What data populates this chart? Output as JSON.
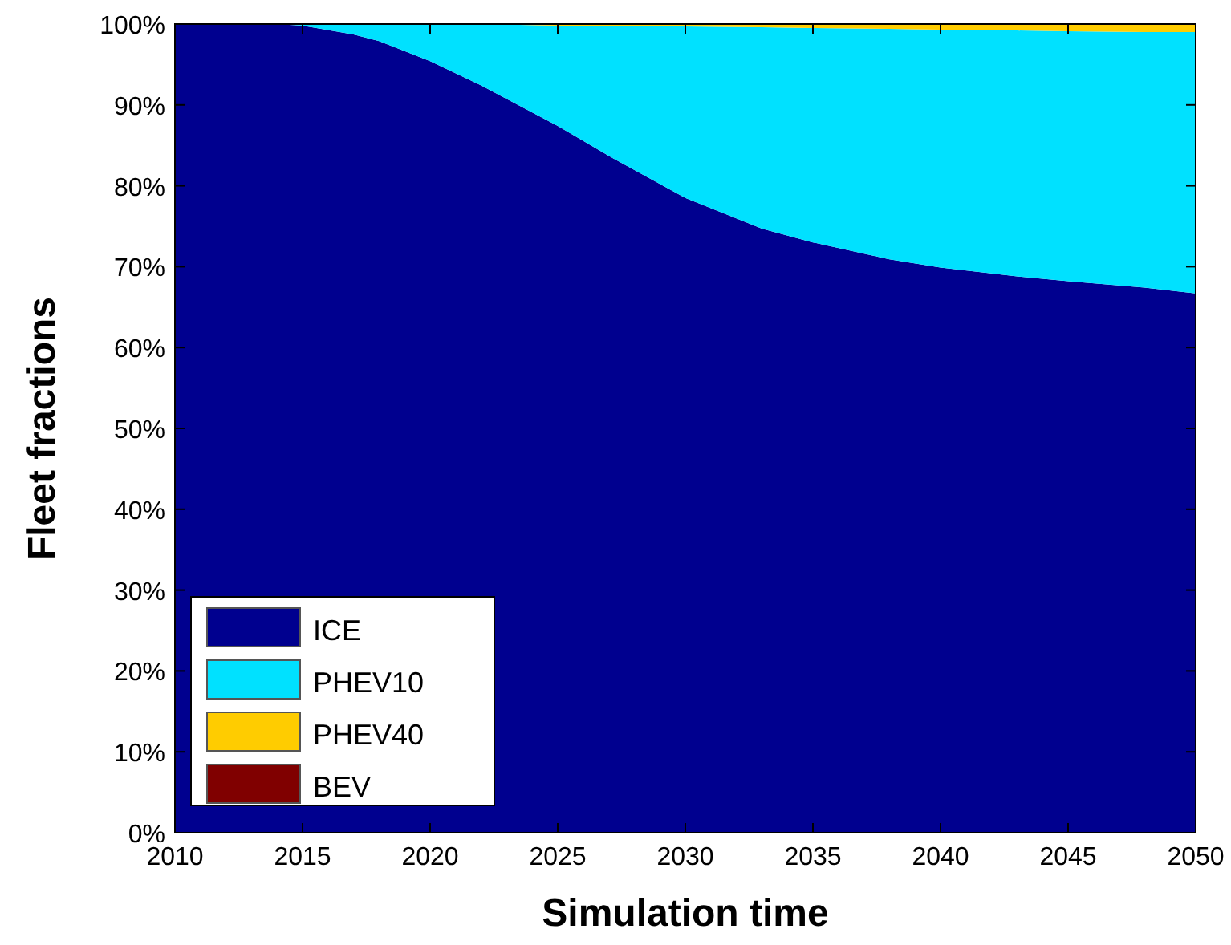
{
  "chart_data": {
    "type": "area",
    "stacked": true,
    "xlabel": "Simulation time",
    "ylabel": "Fleet fractions",
    "x": [
      2010,
      2012,
      2014,
      2015,
      2017,
      2018,
      2020,
      2022,
      2025,
      2027,
      2030,
      2033,
      2035,
      2038,
      2040,
      2043,
      2045,
      2048,
      2050
    ],
    "series": [
      {
        "name": "ICE",
        "color": "#00008f",
        "values": [
          100,
          100,
          100,
          99.8,
          98.7,
          97.9,
          95.4,
          92.4,
          87.4,
          83.7,
          78.5,
          74.7,
          73.0,
          70.9,
          69.9,
          68.8,
          68.2,
          67.4,
          66.7
        ]
      },
      {
        "name": "PHEV10",
        "color": "#00e1ff",
        "values": [
          0,
          0,
          0,
          0.2,
          1.3,
          2.1,
          4.6,
          7.6,
          12.4,
          16.1,
          21.2,
          24.9,
          26.5,
          28.5,
          29.4,
          30.4,
          30.9,
          31.6,
          32.3
        ]
      },
      {
        "name": "PHEV40",
        "color": "#ffcc00",
        "values": [
          0,
          0,
          0,
          0,
          0,
          0,
          0,
          0,
          0.2,
          0.2,
          0.3,
          0.4,
          0.5,
          0.6,
          0.7,
          0.8,
          0.9,
          1.0,
          1.0
        ]
      },
      {
        "name": "BEV",
        "color": "#800000",
        "values": [
          null,
          null,
          null,
          null,
          null,
          null,
          null,
          null,
          null,
          null,
          null,
          null,
          null,
          null,
          null,
          null,
          null,
          null,
          null
        ]
      }
    ],
    "xlim": [
      2010,
      2050
    ],
    "xticks": [
      2010,
      2015,
      2020,
      2025,
      2030,
      2035,
      2040,
      2045,
      2050
    ],
    "ylim": [
      0,
      100
    ],
    "yticks": [
      {
        "value": 0,
        "label": "0%"
      },
      {
        "value": 10,
        "label": "10%"
      },
      {
        "value": 20,
        "label": "20%"
      },
      {
        "value": 30,
        "label": "30%"
      },
      {
        "value": 40,
        "label": "40%"
      },
      {
        "value": 50,
        "label": "50%"
      },
      {
        "value": 60,
        "label": "60%"
      },
      {
        "value": 70,
        "label": "70%"
      },
      {
        "value": 80,
        "label": "80%"
      },
      {
        "value": 90,
        "label": "90%"
      },
      {
        "value": 100,
        "label": "100%"
      }
    ],
    "legend": "bottom left"
  }
}
